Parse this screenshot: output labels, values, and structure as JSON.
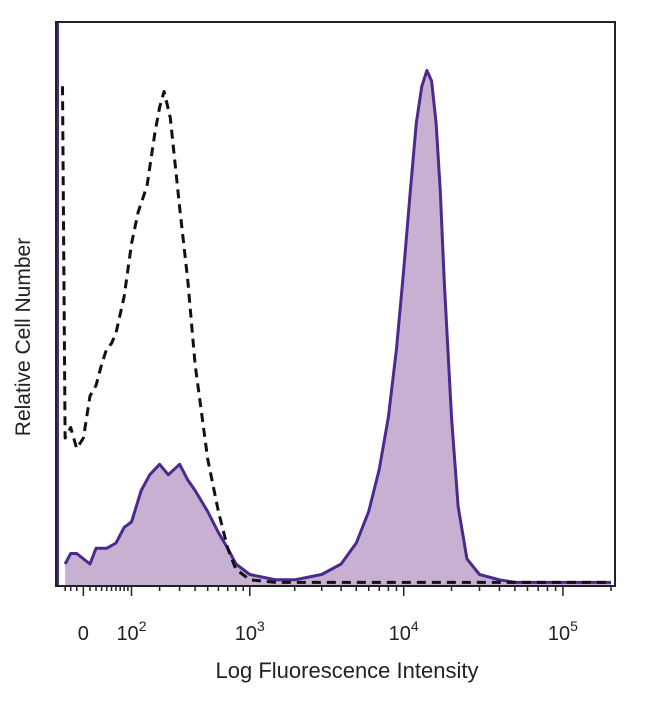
{
  "chart_data": {
    "type": "area",
    "title": "",
    "xlabel": "Log Fluorescence Intensity",
    "ylabel": "Relative Cell Number",
    "x_scale": "biexponential (log)",
    "xlim": [
      -40,
      200000
    ],
    "ylim": [
      0,
      100
    ],
    "grid": false,
    "legend": "none",
    "x_ticks": [
      {
        "value": 0,
        "base": "0",
        "exp": ""
      },
      {
        "value": 100,
        "base": "10",
        "exp": "2"
      },
      {
        "value": 1000,
        "base": "10",
        "exp": "3"
      },
      {
        "value": 10000,
        "base": "10",
        "exp": "4"
      },
      {
        "value": 100000,
        "base": "10",
        "exp": "5"
      }
    ],
    "colors": {
      "stained_fill": "#c8b0d2",
      "stained_line": "#4a2a8c",
      "control_line": "#111111",
      "frame": "#222222"
    },
    "series": [
      {
        "style": "filled-solid",
        "x": [
          -30,
          -20,
          -10,
          0,
          10,
          20,
          40,
          60,
          80,
          100,
          130,
          160,
          200,
          240,
          300,
          350,
          400,
          500,
          600,
          700,
          800,
          1000,
          1500,
          2000,
          3000,
          4000,
          5000,
          6000,
          7000,
          8000,
          9000,
          10000,
          11000,
          12000,
          13000,
          14000,
          15000,
          16000,
          17000,
          18000,
          20000,
          22000,
          25000,
          30000,
          40000,
          50000,
          100000,
          200000
        ],
        "y": [
          4,
          6,
          6,
          5,
          4,
          7,
          7,
          8,
          11,
          12,
          18,
          21,
          23,
          21,
          23,
          20,
          18,
          14,
          10,
          7,
          4,
          2,
          1,
          1,
          2,
          4,
          8,
          14,
          22,
          32,
          45,
          60,
          75,
          88,
          95,
          98,
          96,
          88,
          75,
          58,
          32,
          15,
          5,
          2,
          1,
          0.5,
          0.5,
          0.5
        ]
      },
      {
        "style": "dashed",
        "x": [
          -35,
          -30,
          -20,
          -10,
          0,
          10,
          20,
          30,
          40,
          50,
          60,
          80,
          100,
          120,
          150,
          180,
          200,
          220,
          250,
          300,
          350,
          400,
          500,
          600,
          700,
          800,
          1000,
          1500,
          2000,
          3000,
          5000,
          10000,
          100000,
          200000
        ],
        "y": [
          95,
          28,
          30,
          26,
          28,
          36,
          38,
          42,
          45,
          46,
          48,
          55,
          65,
          71,
          76,
          86,
          91,
          94,
          89,
          72,
          58,
          42,
          24,
          14,
          7,
          3,
          1,
          0.5,
          0.5,
          0.5,
          0.5,
          0.5,
          0.5,
          0.5
        ]
      }
    ]
  }
}
